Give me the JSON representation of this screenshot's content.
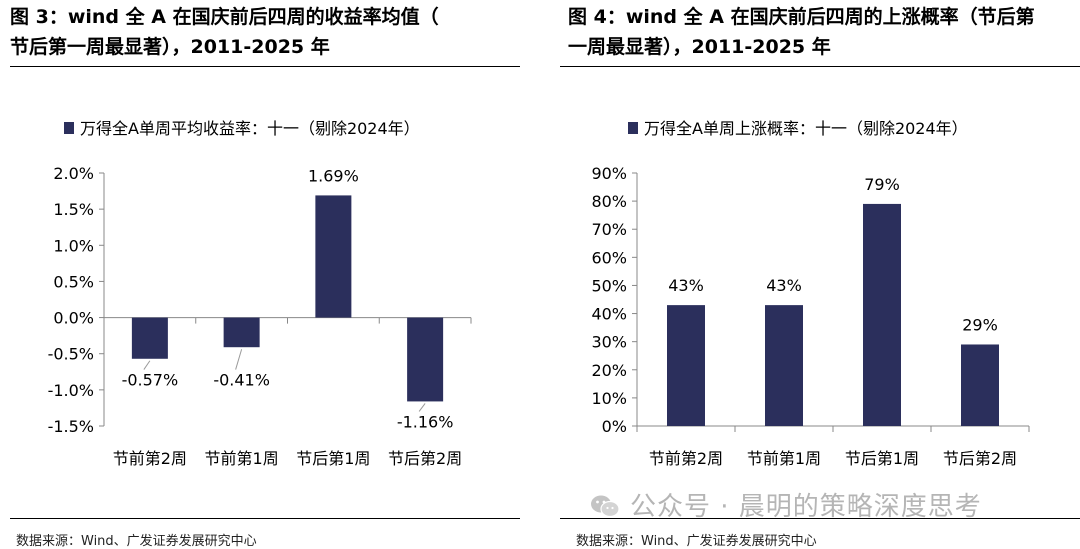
{
  "figures": [
    {
      "title": "图 3：wind 全 A 在国庆前后四周的收益率均值（节后第一周最显著），2011-2025 年",
      "source": "数据来源：Wind、广发证券发展研究中心"
    },
    {
      "title": "图 4：wind 全 A 在国庆前后四周的上涨概率（节后第一周最显著），2011-2025 年",
      "source": "数据来源：Wind、广发证券发展研究中心"
    }
  ],
  "watermark": "公众号 · 晨明的策略深度思考",
  "colors": {
    "bar": "#2b2f5c",
    "axis": "#888888"
  },
  "chart_data": [
    {
      "type": "bar",
      "title": "",
      "legend": "万得全A单周平均收益率：十一（剔除2024年）",
      "legend_position": "top",
      "categories": [
        "节前第2周",
        "节前第1周",
        "节后第1周",
        "节后第2周"
      ],
      "series": [
        {
          "name": "万得全A单周平均收益率：十一（剔除2024年）",
          "values": [
            -0.57,
            -0.41,
            1.69,
            -1.16
          ]
        }
      ],
      "data_labels": [
        "-0.57%",
        "-0.41%",
        "1.69%",
        "-1.16%"
      ],
      "y_ticks": [
        "2.0%",
        "1.5%",
        "1.0%",
        "0.5%",
        "0.0%",
        "-0.5%",
        "-1.0%",
        "-1.5%"
      ],
      "ylim": [
        -1.5,
        2.0
      ],
      "grid": false
    },
    {
      "type": "bar",
      "title": "",
      "legend": "万得全A单周上涨概率：十一（剔除2024年）",
      "legend_position": "top",
      "categories": [
        "节前第2周",
        "节前第1周",
        "节后第1周",
        "节后第2周"
      ],
      "series": [
        {
          "name": "万得全A单周上涨概率：十一（剔除2024年）",
          "values": [
            43,
            43,
            79,
            29
          ]
        }
      ],
      "data_labels": [
        "43%",
        "43%",
        "79%",
        "29%"
      ],
      "y_ticks": [
        "90%",
        "80%",
        "70%",
        "60%",
        "50%",
        "40%",
        "30%",
        "20%",
        "10%",
        "0%"
      ],
      "ylim": [
        0,
        90
      ],
      "grid": false
    }
  ]
}
